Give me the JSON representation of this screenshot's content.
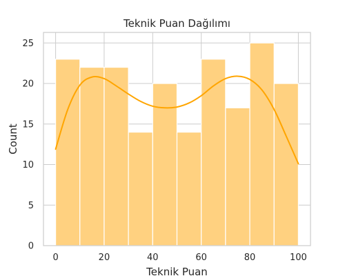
{
  "chart_data": {
    "type": "bar",
    "title": "Teknik Puan Dağılımı",
    "xlabel": "Teknik Puan",
    "ylabel": "Count",
    "bin_edges": [
      0,
      10,
      20,
      30,
      40,
      50,
      60,
      70,
      80,
      90,
      100
    ],
    "categories": [
      "0-10",
      "10-20",
      "20-30",
      "30-40",
      "40-50",
      "50-60",
      "60-70",
      "70-80",
      "80-90",
      "90-100"
    ],
    "values": [
      23,
      22,
      22,
      14,
      20,
      14,
      23,
      17,
      25,
      20
    ],
    "kde_curve": {
      "x": [
        0,
        5,
        10,
        15,
        20,
        25,
        30,
        35,
        40,
        45,
        50,
        55,
        60,
        65,
        70,
        75,
        80,
        85,
        90,
        95,
        100
      ],
      "y": [
        11.9,
        16.8,
        19.8,
        20.8,
        20.6,
        19.7,
        18.7,
        17.8,
        17.2,
        17.0,
        17.1,
        17.6,
        18.5,
        19.7,
        20.6,
        20.9,
        20.5,
        19.2,
        16.8,
        13.5,
        10.1
      ]
    },
    "xlim": [
      -5,
      105
    ],
    "ylim": [
      0,
      26.3
    ],
    "xticks": [
      0,
      20,
      40,
      60,
      80,
      100
    ],
    "yticks": [
      0,
      5,
      10,
      15,
      20,
      25
    ],
    "grid": true,
    "colors": {
      "bar_fill": "#ffd180",
      "bar_edge": "#ffffff",
      "kde_line": "#ffa500",
      "grid": "#cccccc",
      "text": "#262626"
    }
  }
}
